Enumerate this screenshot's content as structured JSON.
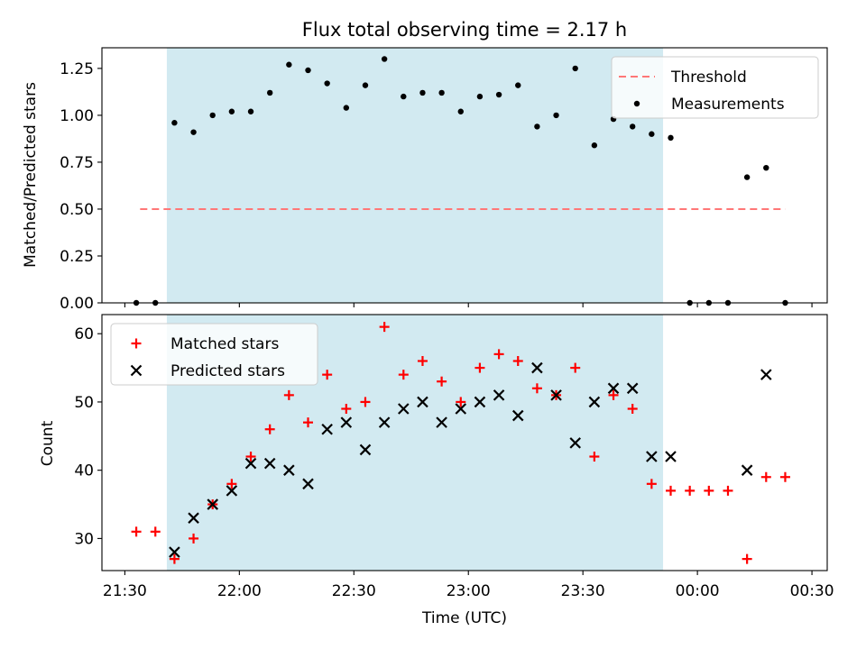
{
  "chart_data": [
    {
      "type": "scatter",
      "title": "Flux total observing time = 2.17 h",
      "ylabel": "Matched/Predicted stars",
      "xlabel": "",
      "xlim": [
        "21:24",
        "00:34"
      ],
      "ylim": [
        0,
        1.36
      ],
      "yticks": [
        "0.00",
        "0.25",
        "0.50",
        "0.75",
        "1.00",
        "1.25"
      ],
      "ytick_values": [
        0,
        0.25,
        0.5,
        0.75,
        1.0,
        1.25
      ],
      "shaded_span": [
        "21:41",
        "23:51"
      ],
      "threshold": {
        "name": "Threshold",
        "value": 0.5,
        "x": [
          "21:34",
          "00:23"
        ],
        "color": "#ff7777",
        "style": "dashed"
      },
      "series": [
        {
          "name": "Measurements",
          "color": "#000000",
          "marker": "dot",
          "x": [
            "21:33",
            "21:38",
            "21:43",
            "21:48",
            "21:53",
            "21:58",
            "22:03",
            "22:08",
            "22:13",
            "22:18",
            "22:23",
            "22:28",
            "22:33",
            "22:38",
            "22:43",
            "22:48",
            "22:53",
            "22:58",
            "23:03",
            "23:08",
            "23:13",
            "23:18",
            "23:23",
            "23:28",
            "23:33",
            "23:38",
            "23:43",
            "23:48",
            "23:53",
            "23:58",
            "00:03",
            "00:08",
            "00:13",
            "00:18",
            "00:23"
          ],
          "values": [
            0.0,
            0.0,
            0.96,
            0.91,
            1.0,
            1.02,
            1.02,
            1.12,
            1.27,
            1.24,
            1.17,
            1.04,
            1.16,
            1.3,
            1.1,
            1.12,
            1.12,
            1.02,
            1.1,
            1.11,
            1.16,
            0.94,
            1.0,
            1.25,
            0.84,
            0.98,
            0.94,
            0.9,
            0.88,
            0.0,
            0.0,
            0.0,
            0.67,
            0.72,
            0.0
          ]
        }
      ],
      "legend": {
        "placement": "top-right",
        "entries": [
          "Threshold",
          "Measurements"
        ]
      }
    },
    {
      "type": "scatter",
      "title": "",
      "ylabel": "Count",
      "xlabel": "Time (UTC)",
      "xlim": [
        "21:24",
        "00:34"
      ],
      "ylim": [
        25.3,
        62.8
      ],
      "yticks": [
        "30",
        "40",
        "50",
        "60"
      ],
      "ytick_values": [
        30,
        40,
        50,
        60
      ],
      "xticks": [
        "21:30",
        "22:00",
        "22:30",
        "23:00",
        "23:30",
        "00:00",
        "00:30"
      ],
      "shaded_span": [
        "21:41",
        "23:51"
      ],
      "series": [
        {
          "name": "Matched stars",
          "color": "#ff0000",
          "marker": "plus",
          "x": [
            "21:33",
            "21:38",
            "21:43",
            "21:48",
            "21:53",
            "21:58",
            "22:03",
            "22:08",
            "22:13",
            "22:18",
            "22:23",
            "22:28",
            "22:33",
            "22:38",
            "22:43",
            "22:48",
            "22:53",
            "22:58",
            "23:03",
            "23:08",
            "23:13",
            "23:18",
            "23:23",
            "23:28",
            "23:33",
            "23:38",
            "23:43",
            "23:48",
            "23:53",
            "23:58",
            "00:03",
            "00:08",
            "00:13",
            "00:18",
            "00:23"
          ],
          "values": [
            31,
            31,
            27,
            30,
            35,
            38,
            42,
            46,
            51,
            47,
            54,
            49,
            50,
            61,
            54,
            56,
            53,
            50,
            55,
            57,
            56,
            52,
            51,
            55,
            42,
            51,
            49,
            38,
            37,
            37,
            37,
            37,
            27,
            39,
            39
          ]
        },
        {
          "name": "Predicted stars",
          "color": "#000000",
          "marker": "x",
          "x": [
            "21:43",
            "21:48",
            "21:53",
            "21:58",
            "22:03",
            "22:08",
            "22:13",
            "22:18",
            "22:23",
            "22:28",
            "22:33",
            "22:38",
            "22:43",
            "22:48",
            "22:53",
            "22:58",
            "23:03",
            "23:08",
            "23:13",
            "23:18",
            "23:23",
            "23:28",
            "23:33",
            "23:38",
            "23:43",
            "23:48",
            "23:53",
            "00:13",
            "00:18"
          ],
          "values": [
            28,
            33,
            35,
            37,
            41,
            41,
            40,
            38,
            46,
            47,
            43,
            47,
            49,
            50,
            47,
            49,
            50,
            51,
            48,
            55,
            51,
            44,
            50,
            52,
            52,
            42,
            42,
            40,
            54
          ]
        }
      ],
      "legend": {
        "placement": "top-left",
        "entries": [
          "Matched stars",
          "Predicted stars"
        ]
      }
    }
  ],
  "colors": {
    "span": "#add8e6",
    "threshold": "#ff7777",
    "matched": "#ff0000",
    "predicted": "#000000",
    "measurements": "#000000"
  }
}
